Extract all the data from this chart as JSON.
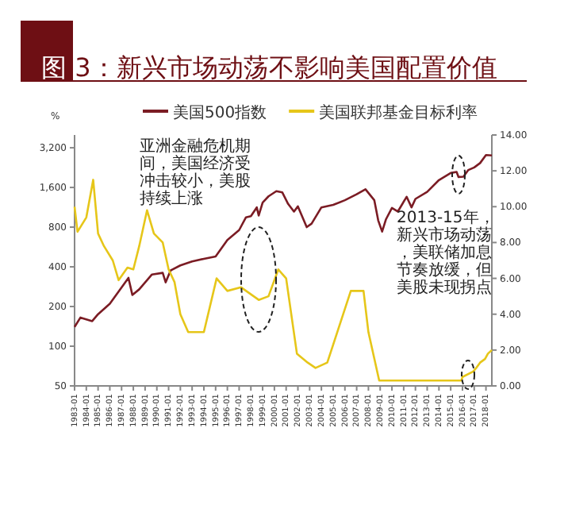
{
  "chart_data": {
    "type": "line",
    "title": "图 3：新兴市场动荡不影响美国配置价值",
    "ylabel": "%",
    "x": [
      "1983-01",
      "1983-07",
      "1984-07",
      "1985-01",
      "1986-01",
      "1987-08",
      "1987-12",
      "1988-07",
      "1989-08",
      "1990-07",
      "1990-10",
      "1991-03",
      "1992-01",
      "1993-01",
      "1994-01",
      "1995-01",
      "1996-01",
      "1997-01",
      "1997-08",
      "1998-01",
      "1998-07",
      "1998-09",
      "1999-01",
      "1999-07",
      "2000-03",
      "2000-09",
      "2001-03",
      "2001-09",
      "2002-01",
      "2002-10",
      "2003-03",
      "2004-01",
      "2005-01",
      "2006-01",
      "2007-01",
      "2007-10",
      "2008-07",
      "2008-11",
      "2009-03",
      "2009-07",
      "2010-01",
      "2010-07",
      "2011-04",
      "2011-09",
      "2012-01",
      "2013-01",
      "2014-01",
      "2015-01",
      "2015-07",
      "2015-09",
      "2016-02",
      "2016-07",
      "2017-01",
      "2017-07",
      "2018-01",
      "2018-07"
    ],
    "series": [
      {
        "name": "美国500指数",
        "color": "#7b1c24",
        "values": [
          140,
          165,
          155,
          175,
          210,
          330,
          245,
          270,
          350,
          360,
          305,
          375,
          410,
          440,
          460,
          480,
          640,
          760,
          950,
          970,
          1130,
          980,
          1230,
          1370,
          1500,
          1470,
          1200,
          1050,
          1150,
          800,
          850,
          1130,
          1180,
          1280,
          1420,
          1550,
          1280,
          900,
          740,
          920,
          1120,
          1050,
          1360,
          1130,
          1310,
          1480,
          1820,
          2060,
          2100,
          1920,
          1930,
          2170,
          2270,
          2450,
          2820,
          2800
        ]
      },
      {
        "name": "美国联邦基金目标利率",
        "color": "#e6c619",
        "axis": "y2",
        "x": [
          "1983-01",
          "1983-04",
          "1984-01",
          "1984-08",
          "1985-01",
          "1985-07",
          "1986-04",
          "1986-10",
          "1987-07",
          "1988-01",
          "1988-07",
          "1989-03",
          "1989-10",
          "1990-07",
          "1991-01",
          "1991-07",
          "1992-01",
          "1992-09",
          "1994-01",
          "1995-02",
          "1996-01",
          "1997-03",
          "1998-09",
          "1999-07",
          "2000-05",
          "2001-01",
          "2001-12",
          "2002-11",
          "2003-07",
          "2004-07",
          "2005-01",
          "2006-07",
          "2007-08",
          "2008-01",
          "2008-12",
          "2015-12",
          "2016-01",
          "2016-12",
          "2017-03",
          "2017-07",
          "2017-12",
          "2018-03",
          "2018-07"
        ],
        "values": [
          10.0,
          8.6,
          9.4,
          11.5,
          8.5,
          7.8,
          7.0,
          5.9,
          6.6,
          6.5,
          7.8,
          9.8,
          8.5,
          8.0,
          6.5,
          5.8,
          4.0,
          3.0,
          3.0,
          6.0,
          5.3,
          5.5,
          4.8,
          5.0,
          6.5,
          6.0,
          1.8,
          1.3,
          1.0,
          1.3,
          2.3,
          5.3,
          5.3,
          3.0,
          0.3,
          0.3,
          0.5,
          0.8,
          1.0,
          1.3,
          1.5,
          1.8,
          2.0
        ]
      }
    ],
    "log": "y",
    "xlim": [
      "1983-01",
      "2018-07"
    ],
    "xticks": [
      "1983-01",
      "1984-01",
      "1985-01",
      "1986-01",
      "1987-01",
      "1988-01",
      "1989-01",
      "1990-01",
      "1991-01",
      "1992-01",
      "1993-01",
      "1994-01",
      "1995-01",
      "1996-01",
      "1997-01",
      "1998-01",
      "1999-01",
      "2000-01",
      "2001-01",
      "2002-01",
      "2003-01",
      "2004-01",
      "2005-01",
      "2006-01",
      "2007-01",
      "2008-01",
      "2009-01",
      "2010-01",
      "2011-01",
      "2012-01",
      "2013-01",
      "2014-01",
      "2015-01",
      "2016-01",
      "2017-01",
      "2018-01"
    ],
    "ylim": [
      50,
      4000
    ],
    "yticks": [
      {
        "value": 50,
        "label": "50"
      },
      {
        "value": 100,
        "label": "100"
      },
      {
        "value": 200,
        "label": "200"
      },
      {
        "value": 400,
        "label": "400"
      },
      {
        "value": 800,
        "label": "800"
      },
      {
        "value": 1600,
        "label": "1,600"
      },
      {
        "value": 3200,
        "label": "3,200"
      }
    ],
    "y2lim": [
      0,
      14
    ],
    "y2ticks": [
      {
        "value": 0,
        "label": "0.00"
      },
      {
        "value": 2,
        "label": "2.00"
      },
      {
        "value": 4,
        "label": "4.00"
      },
      {
        "value": 6,
        "label": "6.00"
      },
      {
        "value": 8,
        "label": "8.00"
      },
      {
        "value": 10,
        "label": "10.00"
      },
      {
        "value": 12,
        "label": "12.00"
      },
      {
        "value": 14,
        "label": "14.00"
      }
    ],
    "legend": "top",
    "grid": false,
    "annotations": [
      "亚洲金融危机期间，美国经济受冲击较小，美股持续上涨",
      "2013-15年，新兴市场动荡，美联储加息节奏放缓，但美股未现拐点"
    ]
  }
}
